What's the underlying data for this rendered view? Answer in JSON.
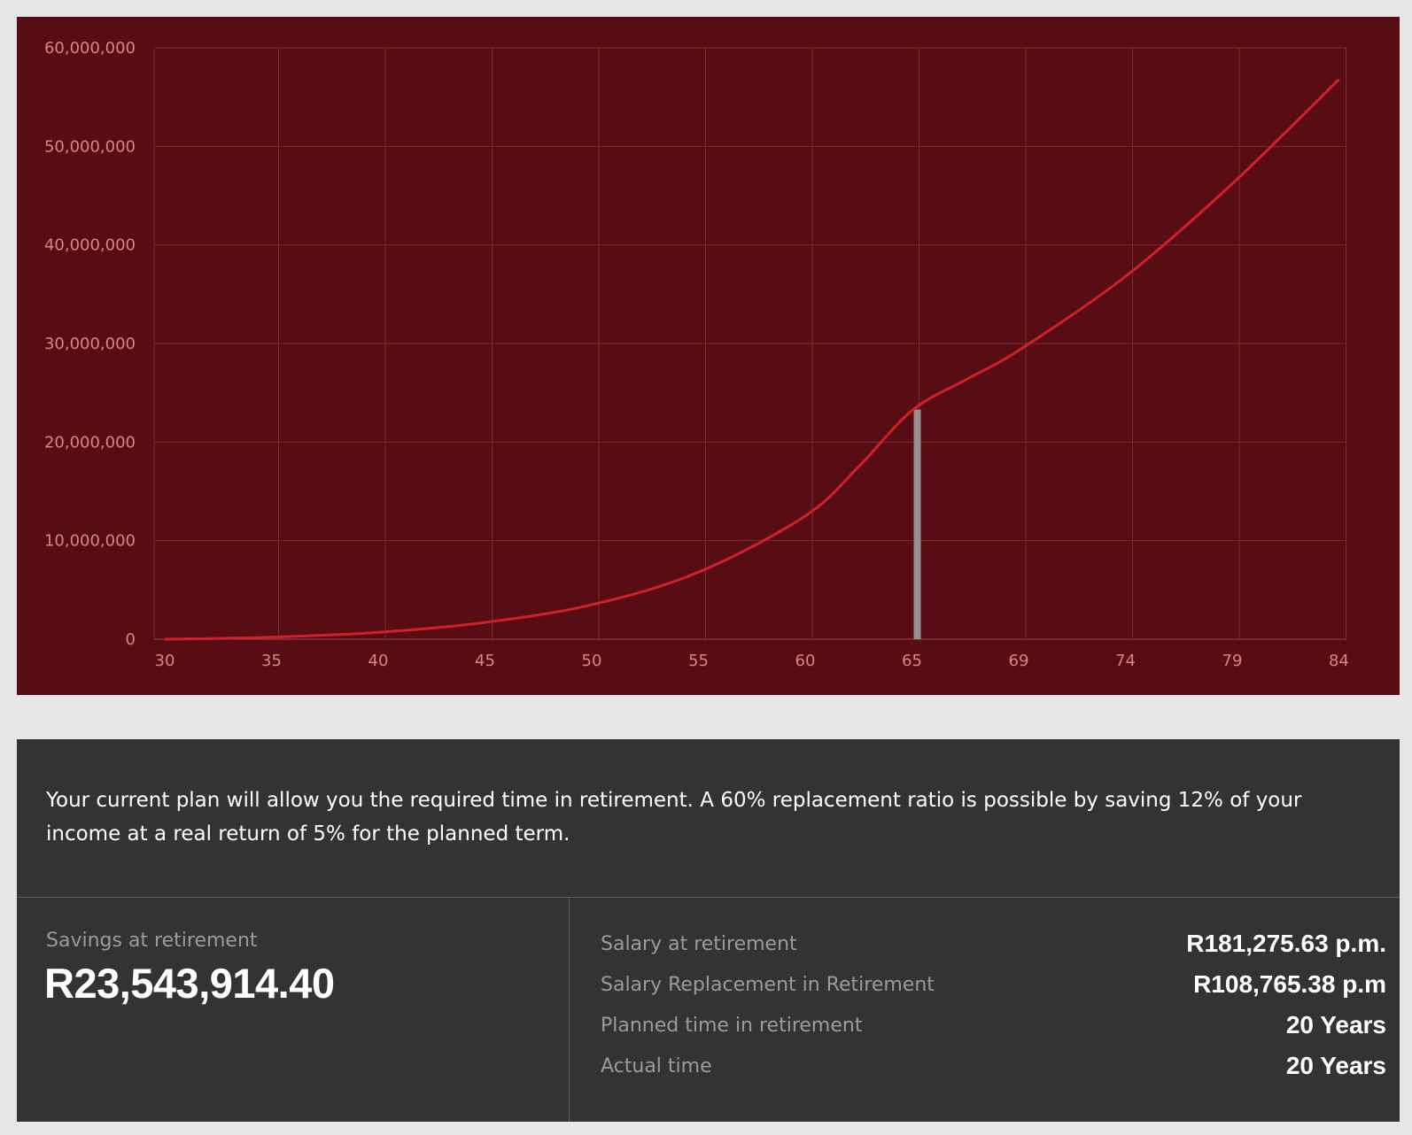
{
  "colors": {
    "chart_background": "#570d13",
    "line": "#d0202a",
    "grid": "#7a2e33",
    "tick_text": "#d9838a",
    "retirement_marker": "#9a8e8f",
    "summary_background": "#333333"
  },
  "chart_data": {
    "type": "line",
    "x_tick_labels": [
      "30",
      "35",
      "40",
      "45",
      "50",
      "55",
      "60",
      "65",
      "69",
      "74",
      "79",
      "84"
    ],
    "y_tick_labels": [
      "0",
      "10,000,000",
      "20,000,000",
      "30,000,000",
      "40,000,000",
      "50,000,000",
      "60,000,000"
    ],
    "y_ticks": [
      0,
      10000000,
      20000000,
      30000000,
      40000000,
      50000000,
      60000000
    ],
    "ylim": [
      0,
      60000000
    ],
    "retirement_index": 7.05,
    "retirement_value": 23300000,
    "series": [
      {
        "index": [
          0,
          1,
          2,
          3,
          4,
          5,
          6,
          6.5,
          7,
          7.5,
          8,
          9,
          10,
          11
        ],
        "values": [
          0,
          200000,
          700000,
          1700000,
          3500000,
          6800000,
          12500000,
          17500000,
          23200000,
          26300000,
          29300000,
          36800000,
          46200000,
          56800000
        ]
      }
    ]
  },
  "summary": {
    "message": "Your current plan will allow you the required time in retirement. A 60% replacement ratio is possible by saving 12% of your income at a real return of 5% for the planned term.",
    "savings_label": "Savings at retirement",
    "savings_value": "R23,543,914.40",
    "stats": [
      {
        "label": "Salary at retirement",
        "value": "R181,275.63 p.m."
      },
      {
        "label": "Salary Replacement in Retirement",
        "value": "R108,765.38 p.m"
      },
      {
        "label": "Planned time in retirement",
        "value": "20 Years"
      },
      {
        "label": "Actual time",
        "value": "20 Years"
      }
    ]
  }
}
